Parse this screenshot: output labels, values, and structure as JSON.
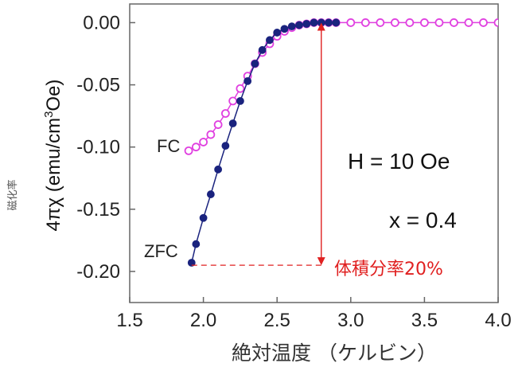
{
  "chart_data": {
    "type": "scatter",
    "xlabel": "絶対温度 （ケルビン）",
    "ylabel_prefix": "4πχ (emu/cm",
    "ylabel_sup": "3",
    "ylabel_suffix": "Oe)",
    "ylabel_jp": "磁化率",
    "xlim": [
      1.5,
      4.0
    ],
    "ylim": [
      -0.225,
      0.015
    ],
    "x_ticks": [
      "1.5",
      "2.0",
      "2.5",
      "3.0",
      "3.5",
      "4.0"
    ],
    "y_ticks": [
      "0.00",
      "-0.05",
      "-0.10",
      "-0.15",
      "-0.20"
    ],
    "series": [
      {
        "name": "FC",
        "color": "#e040e0",
        "marker": "open-circle",
        "x": [
          1.9,
          1.95,
          2.0,
          2.05,
          2.1,
          2.15,
          2.2,
          2.25,
          2.3,
          2.35,
          2.4,
          2.45,
          2.5,
          2.55,
          2.6,
          2.65,
          2.7,
          2.75,
          2.8,
          2.85,
          2.9,
          3.0,
          3.1,
          3.2,
          3.3,
          3.4,
          3.5,
          3.6,
          3.7,
          3.8,
          3.9,
          4.0
        ],
        "y": [
          -0.103,
          -0.1,
          -0.096,
          -0.09,
          -0.082,
          -0.073,
          -0.063,
          -0.053,
          -0.043,
          -0.033,
          -0.024,
          -0.017,
          -0.011,
          -0.007,
          -0.004,
          -0.002,
          -0.001,
          0.0,
          0.0,
          0.0,
          0.0,
          0.0,
          0.0,
          0.0,
          0.0,
          0.0,
          0.0,
          0.0,
          0.0,
          0.0,
          0.0,
          0.0
        ]
      },
      {
        "name": "ZFC",
        "color": "#1a237e",
        "marker": "filled-circle",
        "x": [
          1.92,
          1.95,
          2.0,
          2.05,
          2.1,
          2.15,
          2.2,
          2.25,
          2.3,
          2.35,
          2.4,
          2.45,
          2.5,
          2.55,
          2.6,
          2.65,
          2.7,
          2.75,
          2.8,
          2.85,
          2.9
        ],
        "y": [
          -0.193,
          -0.178,
          -0.157,
          -0.138,
          -0.118,
          -0.099,
          -0.081,
          -0.063,
          -0.047,
          -0.033,
          -0.022,
          -0.014,
          -0.008,
          -0.005,
          -0.003,
          -0.002,
          -0.001,
          0.0,
          0.0,
          0.0,
          0.0
        ]
      }
    ],
    "annotations": {
      "field": "H = 10 Oe",
      "doping": "x = 0.4",
      "volume_fraction": "体積分率20%",
      "arrow_x": 2.8,
      "arrow_from_y": -0.195,
      "arrow_to_y": 0.0,
      "dashed_from_x": 1.92,
      "dashed_y": -0.195
    },
    "annotation_color": "#e02020"
  }
}
